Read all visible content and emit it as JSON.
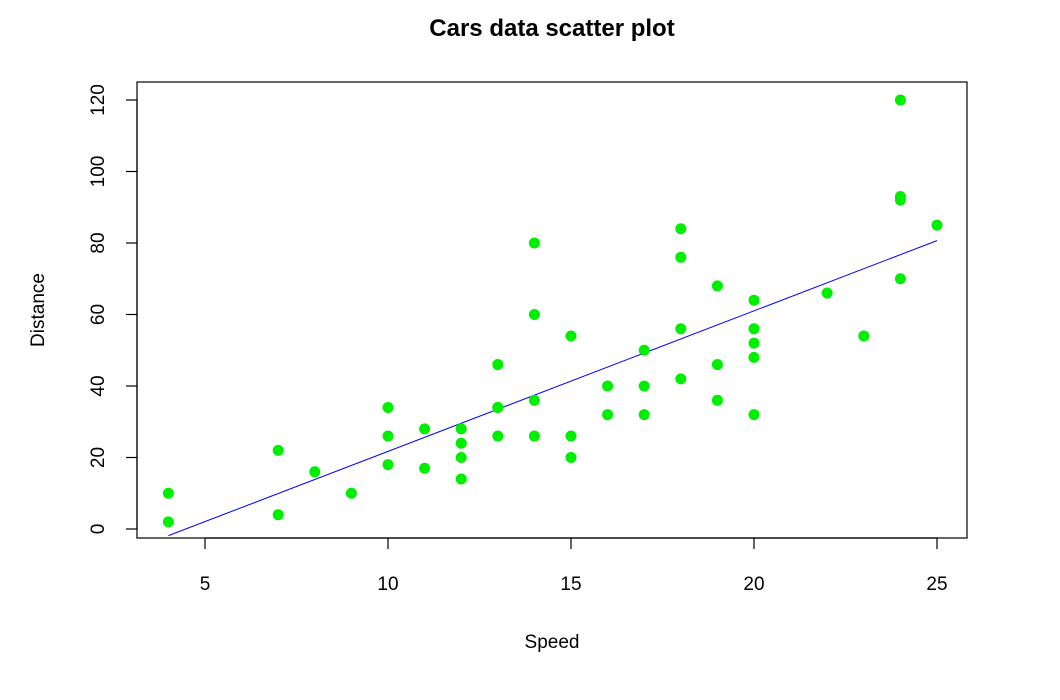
{
  "chart_data": {
    "type": "scatter",
    "title": "Cars data scatter plot",
    "xlabel": "Speed",
    "ylabel": "Distance",
    "xlim": [
      4,
      25
    ],
    "ylim": [
      0,
      120
    ],
    "x_ticks": [
      5,
      10,
      15,
      20,
      25
    ],
    "y_ticks": [
      0,
      20,
      40,
      60,
      80,
      100,
      120
    ],
    "grid": false,
    "legend": "none",
    "point_color": "#00ee00",
    "line_color": "#0000ff",
    "regression_line": {
      "intercept": -17.58,
      "slope": 3.93
    },
    "series": [
      {
        "points": [
          [
            4,
            2
          ],
          [
            4,
            10
          ],
          [
            7,
            4
          ],
          [
            7,
            22
          ],
          [
            8,
            16
          ],
          [
            9,
            10
          ],
          [
            10,
            18
          ],
          [
            10,
            26
          ],
          [
            10,
            34
          ],
          [
            11,
            17
          ],
          [
            11,
            28
          ],
          [
            12,
            14
          ],
          [
            12,
            20
          ],
          [
            12,
            24
          ],
          [
            12,
            28
          ],
          [
            13,
            26
          ],
          [
            13,
            34
          ],
          [
            13,
            34
          ],
          [
            13,
            46
          ],
          [
            14,
            26
          ],
          [
            14,
            36
          ],
          [
            14,
            60
          ],
          [
            14,
            80
          ],
          [
            15,
            20
          ],
          [
            15,
            26
          ],
          [
            15,
            54
          ],
          [
            16,
            32
          ],
          [
            16,
            40
          ],
          [
            17,
            32
          ],
          [
            17,
            40
          ],
          [
            17,
            50
          ],
          [
            18,
            42
          ],
          [
            18,
            56
          ],
          [
            18,
            76
          ],
          [
            18,
            84
          ],
          [
            19,
            36
          ],
          [
            19,
            46
          ],
          [
            19,
            68
          ],
          [
            20,
            32
          ],
          [
            20,
            48
          ],
          [
            20,
            52
          ],
          [
            20,
            56
          ],
          [
            20,
            64
          ],
          [
            22,
            66
          ],
          [
            23,
            54
          ],
          [
            24,
            70
          ],
          [
            24,
            92
          ],
          [
            24,
            93
          ],
          [
            24,
            120
          ],
          [
            25,
            85
          ]
        ]
      }
    ]
  }
}
